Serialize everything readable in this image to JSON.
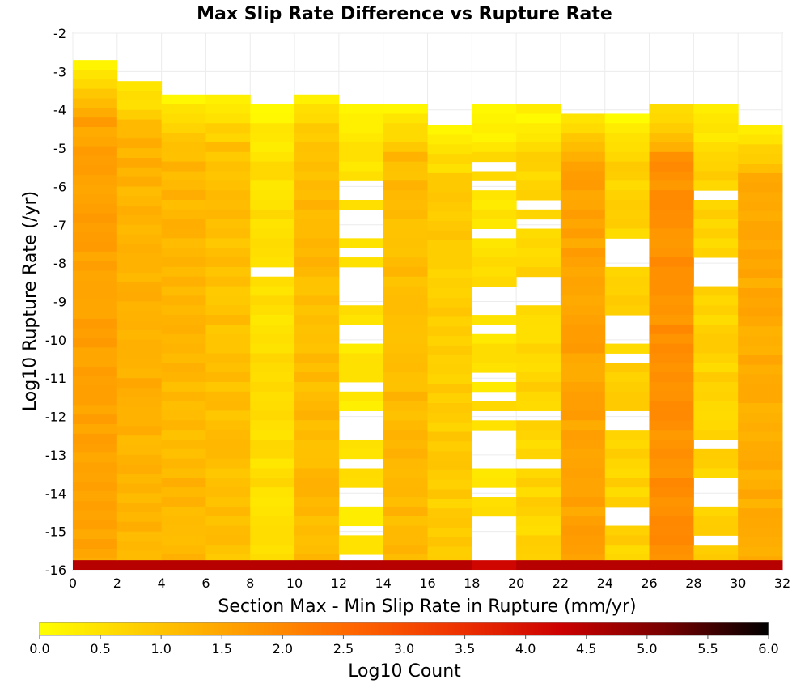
{
  "chart_data": {
    "type": "heatmap",
    "title": "Max Slip Rate Difference vs Rupture Rate",
    "xlabel": "Section Max - Min Slip Rate in Rupture (mm/yr)",
    "ylabel": "Log10 Rupture Rate (/yr)",
    "xlim": [
      0,
      32
    ],
    "ylim": [
      -16,
      -2
    ],
    "x_ticks": [
      "0",
      "2",
      "4",
      "6",
      "8",
      "10",
      "12",
      "14",
      "16",
      "18",
      "20",
      "22",
      "24",
      "26",
      "28",
      "30",
      "32"
    ],
    "y_ticks": [
      "-2",
      "-3",
      "-4",
      "-5",
      "-6",
      "-7",
      "-8",
      "-9",
      "-10",
      "-11",
      "-12",
      "-13",
      "-14",
      "-15",
      "-16"
    ],
    "grid": true,
    "x_bin_width": 2,
    "y_bin_height": 0.25,
    "colorbar": {
      "label": "Log10 Count",
      "range": [
        0,
        6
      ],
      "ticks": [
        "0.0",
        "0.5",
        "1.0",
        "1.5",
        "2.0",
        "2.5",
        "3.0",
        "3.5",
        "4.0",
        "4.5",
        "5.0",
        "5.5",
        "6.0"
      ],
      "colormap": [
        "#ffff00",
        "#ffcc00",
        "#ff9900",
        "#ff6600",
        "#ee3300",
        "#cc0000",
        "#770000",
        "#000000"
      ]
    },
    "bottom_row_values": [
      4.5,
      4.5,
      4.5,
      4.5,
      4.5,
      4.5,
      4.5,
      4.5,
      4.5,
      4.2,
      4.5,
      4.5,
      4.5,
      4.5,
      4.5,
      4.5
    ],
    "columns": [
      {
        "x": 1,
        "top": -2.7,
        "base": 1.55,
        "gaps": []
      },
      {
        "x": 3,
        "top": -3.25,
        "base": 1.3,
        "gaps": []
      },
      {
        "x": 5,
        "top": -3.6,
        "base": 1.2,
        "gaps": []
      },
      {
        "x": 7,
        "top": -3.6,
        "base": 1.05,
        "gaps": []
      },
      {
        "x": 9,
        "top": -3.85,
        "base": 0.55,
        "gaps": [
          [
            -8.25,
            -8.0
          ]
        ]
      },
      {
        "x": 11,
        "top": -3.6,
        "base": 1.15,
        "gaps": []
      },
      {
        "x": 13,
        "top": -3.85,
        "base": 0.45,
        "gaps": [
          [
            -6.25,
            -5.75
          ],
          [
            -7.25,
            -6.5
          ],
          [
            -7.75,
            -7.5
          ],
          [
            -9.0,
            -8.0
          ],
          [
            -10.0,
            -9.5
          ],
          [
            -11.25,
            -11.0
          ],
          [
            -12.5,
            -11.75
          ],
          [
            -13.25,
            -13.0
          ],
          [
            -14.25,
            -13.75
          ],
          [
            -15.0,
            -14.75
          ],
          [
            -15.75,
            -15.5
          ]
        ]
      },
      {
        "x": 15,
        "top": -3.85,
        "base": 1.15,
        "gaps": []
      },
      {
        "x": 17,
        "top": -4.4,
        "base": 0.85,
        "gaps": []
      },
      {
        "x": 19,
        "top": -3.85,
        "base": 0.5,
        "gaps": [
          [
            -5.5,
            -5.25
          ],
          [
            -6.0,
            -5.75
          ],
          [
            -7.25,
            -7.0
          ],
          [
            -9.25,
            -8.5
          ],
          [
            -9.75,
            -9.5
          ],
          [
            -11.0,
            -10.75
          ],
          [
            -11.5,
            -11.25
          ],
          [
            -12.0,
            -11.75
          ],
          [
            -12.5,
            -12.25
          ],
          [
            -13.25,
            -12.5
          ],
          [
            -14.0,
            -13.75
          ],
          [
            -15.75,
            -14.5
          ]
        ]
      },
      {
        "x": 21,
        "top": -3.85,
        "base": 0.7,
        "gaps": [
          [
            -6.5,
            -6.25
          ],
          [
            -7.0,
            -6.75
          ],
          [
            -9.0,
            -8.25
          ],
          [
            -12.0,
            -11.75
          ],
          [
            -13.25,
            -13.0
          ]
        ]
      },
      {
        "x": 23,
        "top": -4.1,
        "base": 1.55,
        "gaps": []
      },
      {
        "x": 25,
        "top": -4.1,
        "base": 0.75,
        "gaps": [
          [
            -8.0,
            -7.25
          ],
          [
            -10.0,
            -9.25
          ],
          [
            -10.5,
            -10.25
          ],
          [
            -12.25,
            -11.75
          ],
          [
            -14.75,
            -14.25
          ]
        ]
      },
      {
        "x": 27,
        "top": -3.85,
        "base": 1.85,
        "gaps": []
      },
      {
        "x": 29,
        "top": -3.85,
        "base": 0.75,
        "gaps": [
          [
            -6.25,
            -6.0
          ],
          [
            -8.5,
            -7.75
          ],
          [
            -12.75,
            -12.5
          ],
          [
            -14.25,
            -13.5
          ],
          [
            -15.25,
            -15.0
          ]
        ]
      },
      {
        "x": 31,
        "top": -4.4,
        "base": 1.4,
        "gaps": []
      }
    ]
  }
}
